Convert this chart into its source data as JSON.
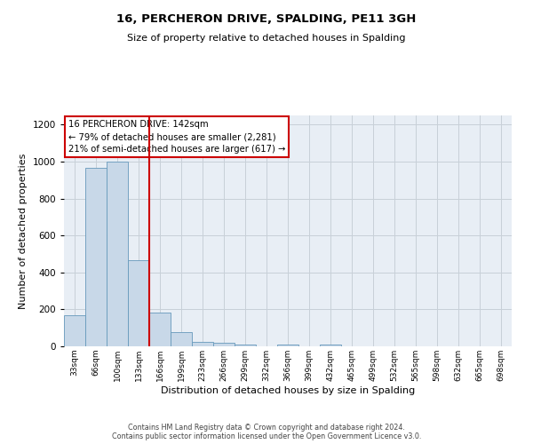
{
  "title": "16, PERCHERON DRIVE, SPALDING, PE11 3GH",
  "subtitle": "Size of property relative to detached houses in Spalding",
  "xlabel": "Distribution of detached houses by size in Spalding",
  "ylabel": "Number of detached properties",
  "bar_labels": [
    "33sqm",
    "66sqm",
    "100sqm",
    "133sqm",
    "166sqm",
    "199sqm",
    "233sqm",
    "266sqm",
    "299sqm",
    "332sqm",
    "366sqm",
    "399sqm",
    "432sqm",
    "465sqm",
    "499sqm",
    "532sqm",
    "565sqm",
    "598sqm",
    "632sqm",
    "665sqm",
    "698sqm"
  ],
  "bar_values": [
    170,
    965,
    1000,
    465,
    185,
    75,
    25,
    18,
    12,
    0,
    10,
    0,
    12,
    0,
    0,
    0,
    0,
    0,
    0,
    0,
    0
  ],
  "bar_color": "#c8d8e8",
  "bar_edge_color": "#6699bb",
  "ylim": [
    0,
    1250
  ],
  "yticks": [
    0,
    200,
    400,
    600,
    800,
    1000,
    1200
  ],
  "red_line_x": 3.5,
  "annotation_title": "16 PERCHERON DRIVE: 142sqm",
  "annotation_line1": "← 79% of detached houses are smaller (2,281)",
  "annotation_line2": "21% of semi-detached houses are larger (617) →",
  "annotation_box_color": "#ffffff",
  "annotation_box_edge_color": "#cc0000",
  "red_line_color": "#cc0000",
  "footer1": "Contains HM Land Registry data © Crown copyright and database right 2024.",
  "footer2": "Contains public sector information licensed under the Open Government Licence v3.0.",
  "background_color": "#ffffff",
  "plot_bg_color": "#e8eef5",
  "grid_color": "#c8d0d8"
}
